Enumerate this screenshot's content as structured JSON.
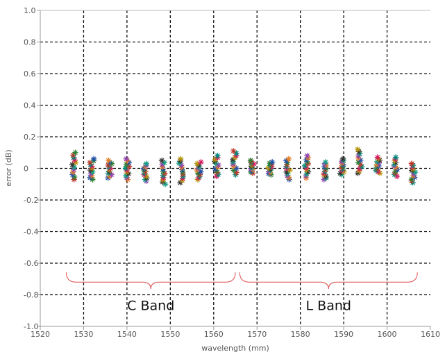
{
  "chart_data": {
    "type": "scatter",
    "title": "",
    "xlabel": "wavelength (mm)",
    "ylabel": "error (dB)",
    "xlim": [
      1520,
      1610
    ],
    "ylim": [
      -1.0,
      1.0
    ],
    "x_ticks": [
      1520,
      1530,
      1540,
      1550,
      1560,
      1570,
      1580,
      1590,
      1600,
      1610
    ],
    "x_tick_labels": [
      "1520",
      "1530",
      "1540",
      "1550",
      "1560",
      "1570",
      "1580",
      "1590",
      "1600",
      "1610"
    ],
    "y_ticks": [
      1.0,
      0.8,
      0.6,
      0.4,
      0.2,
      0,
      -0.2,
      -0.4,
      -0.6,
      -0.8,
      -1.0
    ],
    "y_tick_labels": [
      "1.0",
      "0.8",
      "0.6",
      "0.4",
      "0.2",
      "0",
      "-0.2",
      "-0.4",
      "-0.6",
      "-0.8",
      "-1.0"
    ],
    "grid": "dashed",
    "marker": "*",
    "series_colors": [
      "#c0392b",
      "#2e7d32",
      "#1f4fa8",
      "#e67e22",
      "#8e44ad",
      "#16a085",
      "#333333",
      "#b7950b",
      "#d81b60",
      "#00897b"
    ],
    "channels": [
      {
        "x": 1527.8,
        "ymin": -0.07,
        "ymax": 0.1
      },
      {
        "x": 1531.9,
        "ymin": -0.07,
        "ymax": 0.06
      },
      {
        "x": 1536.0,
        "ymin": -0.06,
        "ymax": 0.05
      },
      {
        "x": 1540.1,
        "ymin": -0.07,
        "ymax": 0.06
      },
      {
        "x": 1544.3,
        "ymin": -0.08,
        "ymax": 0.03
      },
      {
        "x": 1548.4,
        "ymin": -0.1,
        "ymax": 0.05
      },
      {
        "x": 1552.5,
        "ymin": -0.09,
        "ymax": 0.06
      },
      {
        "x": 1556.6,
        "ymin": -0.07,
        "ymax": 0.04
      },
      {
        "x": 1560.7,
        "ymin": -0.05,
        "ymax": 0.08
      },
      {
        "x": 1564.9,
        "ymin": -0.04,
        "ymax": 0.11
      },
      {
        "x": 1569.0,
        "ymin": -0.03,
        "ymax": 0.05
      },
      {
        "x": 1573.1,
        "ymin": -0.04,
        "ymax": 0.04
      },
      {
        "x": 1577.2,
        "ymin": -0.07,
        "ymax": 0.06
      },
      {
        "x": 1581.4,
        "ymin": -0.06,
        "ymax": 0.08
      },
      {
        "x": 1585.5,
        "ymin": -0.07,
        "ymax": 0.04
      },
      {
        "x": 1589.6,
        "ymin": -0.04,
        "ymax": 0.06
      },
      {
        "x": 1593.7,
        "ymin": -0.03,
        "ymax": 0.12
      },
      {
        "x": 1597.9,
        "ymin": -0.03,
        "ymax": 0.07
      },
      {
        "x": 1602.0,
        "ymin": -0.05,
        "ymax": 0.07
      },
      {
        "x": 1606.1,
        "ymin": -0.09,
        "ymax": 0.03
      }
    ],
    "annotations": [
      {
        "text": "C Band",
        "x_range": [
          1526,
          1565
        ],
        "y": -0.72
      },
      {
        "text": "L Band",
        "x_range": [
          1566,
          1607
        ],
        "y": -0.72
      }
    ],
    "annotation_color": "#e05a5a"
  }
}
